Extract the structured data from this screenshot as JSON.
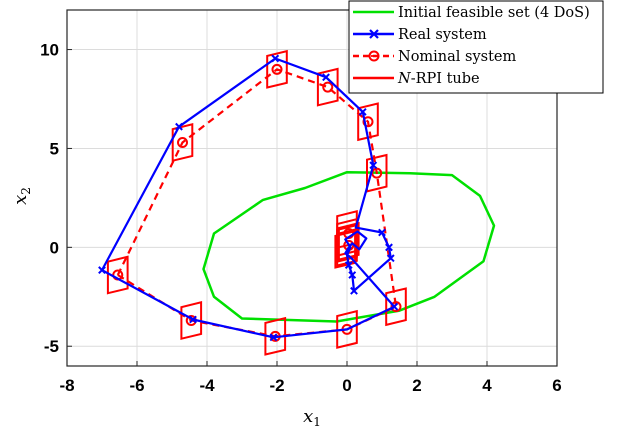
{
  "chart_data": {
    "type": "line",
    "xlabel": "x1",
    "ylabel": "x2",
    "xlim": [
      -8,
      6
    ],
    "ylim": [
      -6,
      12
    ],
    "xticks": [
      "-8",
      "-6",
      "-4",
      "-2",
      "0",
      "2",
      "4",
      "6"
    ],
    "yticks": [
      "-5",
      "0",
      "5",
      "10"
    ],
    "grid": true,
    "legend_position": "top-right",
    "legend": [
      {
        "key": "feasible",
        "label": "Initial feasible set (4 DoS)"
      },
      {
        "key": "real",
        "label": "Real system"
      },
      {
        "key": "nominal",
        "label": "Nominal system"
      },
      {
        "key": "tube",
        "label_italic": "N",
        "label": "-RPI tube"
      }
    ],
    "colors": {
      "feasible": "#00e000",
      "real": "#0000ff",
      "nominal": "#ff0000",
      "tube": "#ff0000"
    },
    "feasible_set": [
      [
        -1.2,
        3.0
      ],
      [
        0.0,
        3.8
      ],
      [
        1.8,
        3.75
      ],
      [
        3.0,
        3.65
      ],
      [
        3.8,
        2.6
      ],
      [
        4.2,
        1.1
      ],
      [
        3.9,
        -0.7
      ],
      [
        2.5,
        -2.5
      ],
      [
        1.5,
        -3.2
      ],
      [
        -0.3,
        -3.75
      ],
      [
        -3.0,
        -3.6
      ],
      [
        -3.8,
        -2.5
      ],
      [
        -4.1,
        -1.1
      ],
      [
        -3.8,
        0.7
      ],
      [
        -2.4,
        2.4
      ]
    ],
    "nominal_trajectory": [
      [
        -6.55,
        -1.4
      ],
      [
        -4.45,
        -3.7
      ],
      [
        -2.05,
        -4.5
      ],
      [
        0.0,
        -4.15
      ],
      [
        1.4,
        -3.0
      ],
      [
        0.85,
        3.75
      ],
      [
        0.6,
        6.35
      ],
      [
        -0.55,
        8.1
      ],
      [
        -2.0,
        9.0
      ],
      [
        -4.7,
        5.3
      ],
      [
        -6.55,
        -1.4
      ]
    ],
    "nominal_markers": [
      [
        -6.55,
        -1.4
      ],
      [
        -4.45,
        -3.7
      ],
      [
        -2.05,
        -4.5
      ],
      [
        0.0,
        -4.15
      ],
      [
        1.4,
        -3.0
      ],
      [
        0.85,
        3.75
      ],
      [
        0.6,
        6.35
      ],
      [
        -0.55,
        8.1
      ],
      [
        -2.0,
        9.0
      ],
      [
        -4.7,
        5.3
      ],
      [
        0.05,
        0.7
      ],
      [
        0.05,
        0.1
      ]
    ],
    "real_trajectory": [
      [
        -7.0,
        -1.15
      ],
      [
        -4.8,
        6.1
      ],
      [
        -2.05,
        9.55
      ],
      [
        -0.6,
        8.6
      ],
      [
        0.45,
        6.85
      ],
      [
        0.75,
        4.15
      ],
      [
        0.25,
        1.0
      ],
      [
        1.0,
        0.75
      ],
      [
        1.2,
        0.0
      ],
      [
        1.25,
        -0.55
      ],
      [
        0.2,
        -2.2
      ],
      [
        0.15,
        -1.4
      ],
      [
        0.05,
        -0.9
      ],
      [
        0.0,
        -0.4
      ],
      [
        0.1,
        0.0
      ],
      [
        -0.05,
        0.4
      ],
      [
        0.3,
        0.8
      ],
      [
        0.55,
        0.45
      ],
      [
        0.35,
        -0.1
      ],
      [
        0.15,
        0.2
      ],
      [
        0.05,
        0.0
      ],
      [
        -0.05,
        -0.3
      ],
      [
        0.1,
        -0.5
      ],
      [
        1.35,
        -3.0
      ],
      [
        0.0,
        -4.15
      ],
      [
        -2.1,
        -4.55
      ],
      [
        -4.4,
        -3.65
      ],
      [
        -7.0,
        -1.15
      ]
    ],
    "real_markers": [
      [
        -7.0,
        -1.15
      ],
      [
        -4.8,
        6.1
      ],
      [
        -2.05,
        9.55
      ],
      [
        -0.6,
        8.6
      ],
      [
        0.45,
        6.85
      ],
      [
        0.75,
        4.15
      ],
      [
        1.0,
        0.75
      ],
      [
        1.2,
        0.0
      ],
      [
        1.25,
        -0.55
      ],
      [
        0.2,
        -2.2
      ],
      [
        0.15,
        -1.4
      ],
      [
        0.05,
        -0.9
      ],
      [
        1.35,
        -3.0
      ],
      [
        -2.1,
        -4.55
      ],
      [
        -4.4,
        -3.65
      ]
    ],
    "tube_centers": [
      [
        -6.55,
        -1.4
      ],
      [
        -4.45,
        -3.7
      ],
      [
        -2.05,
        -4.5
      ],
      [
        0.0,
        -4.15
      ],
      [
        1.4,
        -3.0
      ],
      [
        0.85,
        3.75
      ],
      [
        0.6,
        6.35
      ],
      [
        -0.55,
        8.1
      ],
      [
        -2.0,
        9.0
      ],
      [
        -4.7,
        5.3
      ],
      [
        0.0,
        0.9
      ],
      [
        0.0,
        0.5
      ],
      [
        0.0,
        0.2
      ],
      [
        -0.05,
        -0.1
      ],
      [
        0.05,
        0.3
      ],
      [
        0.0,
        0.0
      ]
    ]
  }
}
